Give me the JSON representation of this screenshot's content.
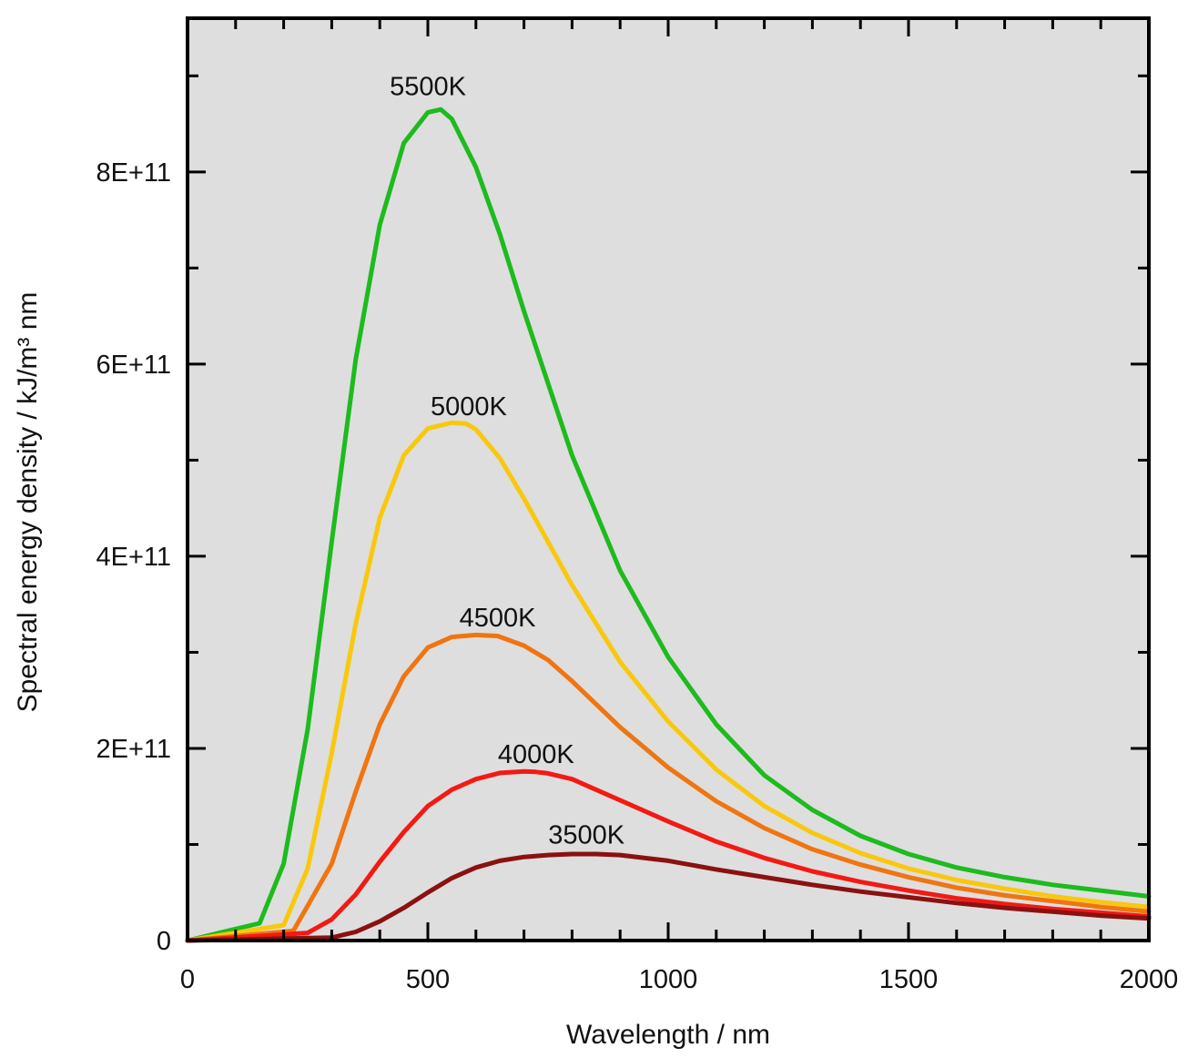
{
  "chart_data": {
    "type": "line",
    "title": "",
    "xlabel": "Wavelength / nm",
    "ylabel": "Spectral energy density / kJ/m³ nm",
    "xlim": [
      0,
      2000
    ],
    "ylim": [
      0,
      960000000000.0
    ],
    "x_ticks": [
      {
        "value": 0,
        "label": "0"
      },
      {
        "value": 500,
        "label": "500"
      },
      {
        "value": 1000,
        "label": "1000"
      },
      {
        "value": 1500,
        "label": "1500"
      },
      {
        "value": 2000,
        "label": "2000"
      }
    ],
    "y_ticks": [
      {
        "value": 0,
        "label": "0"
      },
      {
        "value": 200000000000.0,
        "label": "2E+11"
      },
      {
        "value": 400000000000.0,
        "label": "4E+11"
      },
      {
        "value": 600000000000.0,
        "label": "6E+11"
      },
      {
        "value": 800000000000.0,
        "label": "8E+11"
      }
    ],
    "x_minor_step": 100,
    "y_minor_step": 100000000000.0,
    "grid": false,
    "background": "#dedede",
    "series": [
      {
        "name": "5500K",
        "temperature": 5500,
        "color": "#1dbb1d",
        "x": [
          0,
          150,
          200,
          250,
          300,
          350,
          400,
          450,
          500,
          527,
          550,
          600,
          650,
          700,
          800,
          900,
          1000,
          1100,
          1200,
          1300,
          1400,
          1500,
          1600,
          1700,
          1800,
          1900,
          2000
        ],
        "values": [
          0,
          18000000000.0,
          80000000000.0,
          220000000000.0,
          415000000000.0,
          605000000000.0,
          745000000000.0,
          830000000000.0,
          862000000000.0,
          865000000000.0,
          855000000000.0,
          805000000000.0,
          735000000000.0,
          655000000000.0,
          505000000000.0,
          385000000000.0,
          295000000000.0,
          225000000000.0,
          172000000000.0,
          136000000000.0,
          109000000000.0,
          90000000000.0,
          76000000000.0,
          66000000000.0,
          58000000000.0,
          52000000000.0,
          46000000000.0
        ]
      },
      {
        "name": "5000K",
        "temperature": 5000,
        "color": "#f9c80e",
        "x": [
          0,
          200,
          250,
          300,
          350,
          400,
          450,
          500,
          550,
          580,
          600,
          650,
          700,
          800,
          900,
          1000,
          1100,
          1200,
          1300,
          1400,
          1500,
          1600,
          1700,
          1800,
          1900,
          2000
        ],
        "values": [
          0,
          16000000000.0,
          75000000000.0,
          195000000000.0,
          330000000000.0,
          440000000000.0,
          505000000000.0,
          533000000000.0,
          539000000000.0,
          538000000000.0,
          532000000000.0,
          502000000000.0,
          460000000000.0,
          370000000000.0,
          290000000000.0,
          228000000000.0,
          178000000000.0,
          140000000000.0,
          112000000000.0,
          91000000000.0,
          75000000000.0,
          63000000000.0,
          54000000000.0,
          46000000000.0,
          40000000000.0,
          35000000000.0
        ]
      },
      {
        "name": "4500K",
        "temperature": 4500,
        "color": "#f07511",
        "x": [
          0,
          220,
          300,
          350,
          400,
          450,
          500,
          550,
          600,
          645,
          700,
          750,
          800,
          900,
          1000,
          1100,
          1200,
          1300,
          1400,
          1500,
          1600,
          1700,
          1800,
          1900,
          2000
        ],
        "values": [
          0,
          10000000000.0,
          80000000000.0,
          155000000000.0,
          225000000000.0,
          275000000000.0,
          305000000000.0,
          316000000000.0,
          318000000000.0,
          317000000000.0,
          307000000000.0,
          292000000000.0,
          270000000000.0,
          222000000000.0,
          180000000000.0,
          145000000000.0,
          117000000000.0,
          95000000000.0,
          79000000000.0,
          66000000000.0,
          55000000000.0,
          47000000000.0,
          41000000000.0,
          35000000000.0,
          30000000000.0
        ]
      },
      {
        "name": "4000K",
        "temperature": 4000,
        "color": "#f31a14",
        "x": [
          0,
          250,
          300,
          350,
          400,
          450,
          500,
          550,
          600,
          650,
          700,
          725,
          750,
          800,
          900,
          1000,
          1100,
          1200,
          1300,
          1400,
          1500,
          1600,
          1700,
          1800,
          1900,
          2000
        ],
        "values": [
          0,
          8000000000.0,
          22000000000.0,
          48000000000.0,
          82000000000.0,
          113000000000.0,
          140000000000.0,
          157000000000.0,
          168000000000.0,
          174500000000.0,
          176000000000.0,
          175500000000.0,
          174000000000.0,
          168000000000.0,
          146000000000.0,
          124000000000.0,
          103000000000.0,
          86000000000.0,
          72000000000.0,
          61000000000.0,
          52000000000.0,
          44000000000.0,
          38000000000.0,
          33000000000.0,
          29000000000.0,
          25000000000.0
        ]
      },
      {
        "name": "3500K",
        "temperature": 3500,
        "color": "#8b1111",
        "x": [
          0,
          300,
          350,
          400,
          450,
          500,
          550,
          600,
          650,
          700,
          750,
          800,
          850,
          900,
          1000,
          1100,
          1200,
          1300,
          1400,
          1500,
          1600,
          1700,
          1800,
          1900,
          2000
        ],
        "values": [
          0,
          3000000000.0,
          9000000000.0,
          20000000000.0,
          34000000000.0,
          50000000000.0,
          65000000000.0,
          76000000000.0,
          83000000000.0,
          87000000000.0,
          89000000000.0,
          90000000000.0,
          90000000000.0,
          89000000000.0,
          83000000000.0,
          74000000000.0,
          66000000000.0,
          58000000000.0,
          51000000000.0,
          45000000000.0,
          39000000000.0,
          34000000000.0,
          30000000000.0,
          26000000000.0,
          23000000000.0
        ]
      }
    ],
    "curve_labels": [
      {
        "text": "5500K",
        "x": 500,
        "y": 880000000000.0
      },
      {
        "text": "5000K",
        "x": 585,
        "y": 547000000000.0
      },
      {
        "text": "4500K",
        "x": 645,
        "y": 327000000000.0
      },
      {
        "text": "4000K",
        "x": 725,
        "y": 185000000000.0
      },
      {
        "text": "3500K",
        "x": 830,
        "y": 101000000000.0
      }
    ]
  }
}
